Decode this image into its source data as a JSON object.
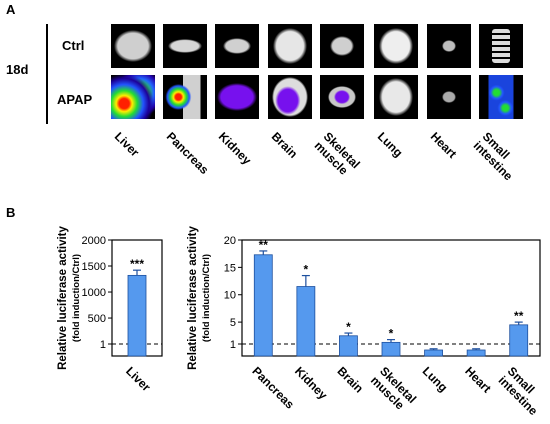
{
  "panel_a": {
    "letter": "A",
    "timepoint": "18d",
    "rows": [
      "Ctrl",
      "APAP"
    ],
    "organs": [
      "Liver",
      "Pancreas",
      "Kidney",
      "Brain",
      "Skeletal\nmuscle",
      "Lung",
      "Heart",
      "Small\nintestine"
    ]
  },
  "panel_b": {
    "letter": "B"
  },
  "chart_data": [
    {
      "type": "bar",
      "categories": [
        "Liver"
      ],
      "values": [
        1320
      ],
      "errors": [
        100
      ],
      "significance": [
        "***"
      ],
      "ylabel": "Relative luciferase activity",
      "ylabel_sub": "(fold induction/Ctrl)",
      "ylim": [
        0,
        2000
      ],
      "yticks": [
        "2000",
        "1500",
        "1000",
        "500",
        "1"
      ],
      "reference_line": 1,
      "bar_color": "#5599ee"
    },
    {
      "type": "bar",
      "categories": [
        "Pancreas",
        "Kidney",
        "Brain",
        "Skeletal\nmuscle",
        "Lung",
        "Heart",
        "Small\nintestine"
      ],
      "values": [
        17.3,
        11.5,
        2.5,
        1.3,
        0.5,
        0.5,
        4.5
      ],
      "errors": [
        0.7,
        2.0,
        0.5,
        0.5,
        0.1,
        0.1,
        0.5
      ],
      "significance": [
        "**",
        "*",
        "*",
        "*",
        "",
        "",
        "**"
      ],
      "ylabel": "Relative luciferase activity",
      "ylabel_sub": "(fold induction/Ctrl)",
      "ylim": [
        0,
        20
      ],
      "yticks": [
        "20",
        "15",
        "10",
        "5",
        "1"
      ],
      "reference_line": 1,
      "bar_color": "#5599ee"
    }
  ]
}
